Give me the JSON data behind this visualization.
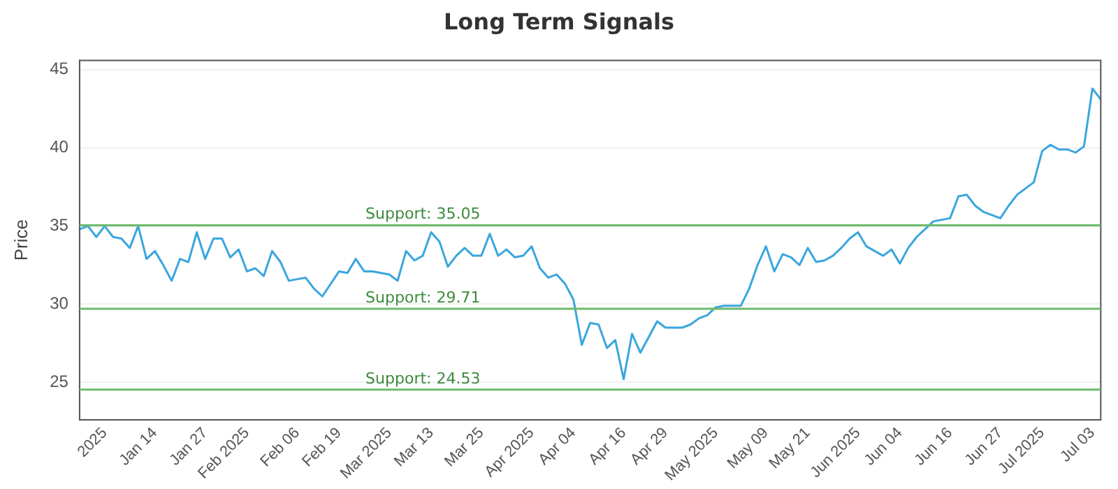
{
  "chart_data": {
    "type": "line",
    "title": "Long Term Signals",
    "ylabel": "Price",
    "categories": [
      null,
      null,
      null,
      "2025",
      null,
      null,
      null,
      null,
      null,
      "Jan 14",
      null,
      null,
      null,
      null,
      null,
      "Jan 27",
      null,
      null,
      null,
      null,
      "Feb 2025",
      null,
      null,
      null,
      null,
      null,
      "Feb 06",
      null,
      null,
      null,
      null,
      "Feb 19",
      null,
      null,
      null,
      null,
      null,
      "Mar 2025",
      null,
      null,
      null,
      null,
      "Mar 13",
      null,
      null,
      null,
      null,
      null,
      "Mar 25",
      null,
      null,
      null,
      null,
      null,
      "Apr 2025",
      null,
      null,
      null,
      null,
      "Apr 04",
      null,
      null,
      null,
      null,
      null,
      "Apr 16",
      null,
      null,
      null,
      null,
      "Apr 29",
      null,
      null,
      null,
      null,
      null,
      "May 2025",
      null,
      null,
      null,
      null,
      null,
      "May 09",
      null,
      null,
      null,
      null,
      "May 21",
      null,
      null,
      null,
      null,
      null,
      "Jun 2025",
      null,
      null,
      null,
      null,
      "Jun 04",
      null,
      null,
      null,
      null,
      null,
      "Jun 16",
      null,
      null,
      null,
      null,
      null,
      "Jun 27",
      null,
      null,
      null,
      null,
      "Jul 2025",
      null,
      null,
      null,
      null,
      null,
      "Jul 03",
      null
    ],
    "series": [
      {
        "color": "#3aa6dd",
        "values": [
          34.8,
          35.0,
          34.3,
          35.0,
          34.3,
          34.2,
          33.6,
          35.0,
          32.9,
          33.4,
          32.5,
          31.5,
          32.9,
          32.7,
          34.6,
          32.9,
          34.2,
          34.2,
          33.0,
          33.5,
          32.1,
          32.3,
          31.8,
          33.4,
          32.7,
          31.5,
          31.6,
          31.7,
          31.0,
          30.5,
          31.3,
          32.1,
          32.0,
          32.9,
          32.1,
          32.1,
          32.0,
          31.9,
          31.5,
          33.4,
          32.8,
          33.1,
          34.6,
          34.0,
          32.4,
          33.1,
          33.6,
          33.1,
          33.1,
          34.5,
          33.1,
          33.5,
          33.0,
          33.1,
          33.7,
          32.3,
          31.7,
          31.9,
          31.3,
          30.3,
          27.4,
          28.8,
          28.7,
          27.2,
          27.7,
          25.2,
          28.1,
          26.9,
          27.9,
          28.9,
          28.5,
          28.5,
          28.5,
          28.7,
          29.1,
          29.3,
          29.8,
          29.9,
          29.9,
          29.9,
          31.0,
          32.5,
          33.7,
          32.1,
          33.2,
          33.0,
          32.5,
          33.6,
          32.7,
          32.8,
          33.1,
          33.6,
          34.2,
          34.6,
          33.7,
          33.4,
          33.1,
          33.5,
          32.6,
          33.6,
          34.3,
          34.8,
          35.3,
          35.4,
          35.5,
          36.9,
          37.0,
          36.3,
          35.9,
          35.7,
          35.5,
          36.3,
          37.0,
          37.4,
          37.8,
          39.8,
          40.2,
          39.9,
          39.9,
          39.7,
          40.1,
          43.8,
          43.1
        ]
      }
    ],
    "ylim": [
      22.6,
      45.6
    ],
    "yticks": [
      25,
      30,
      35,
      40,
      45
    ],
    "grid": "y",
    "marker": "none",
    "line_style": "solid",
    "legend": false,
    "ref_lines": [
      {
        "axis": "y",
        "value": 35.05,
        "label": "Support: 35.05",
        "color": "#6dbb6d"
      },
      {
        "axis": "y",
        "value": 29.71,
        "label": "Support: 29.71",
        "color": "#6dbb6d"
      },
      {
        "axis": "y",
        "value": 24.53,
        "label": "Support: 24.53",
        "color": "#6dbb6d"
      }
    ]
  }
}
